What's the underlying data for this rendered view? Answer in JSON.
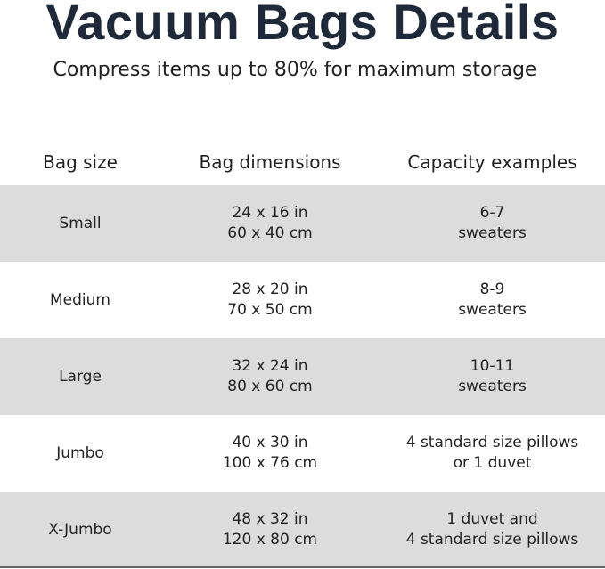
{
  "title": "Vacuum Bags Details",
  "subtitle": "Compress items up to 80% for maximum storage",
  "table": {
    "headers": [
      "Bag size",
      "Bag dimensions",
      "Capacity examples"
    ],
    "rows": [
      {
        "size": "Small",
        "dim_in": "24 x 16 in",
        "dim_cm": "60 x 40 cm",
        "cap1": "6-7",
        "cap2": "sweaters"
      },
      {
        "size": "Medium",
        "dim_in": "28 x 20 in",
        "dim_cm": "70 x 50 cm",
        "cap1": "8-9",
        "cap2": "sweaters"
      },
      {
        "size": "Large",
        "dim_in": "32 x 24 in",
        "dim_cm": "80 x 60 cm",
        "cap1": "10-11",
        "cap2": "sweaters"
      },
      {
        "size": "Jumbo",
        "dim_in": "40 x 30 in",
        "dim_cm": "100 x 76 cm",
        "cap1": "4 standard size pillows",
        "cap2": "or 1 duvet"
      },
      {
        "size": "X-Jumbo",
        "dim_in": "48 x 32 in",
        "dim_cm": "120 x 80 cm",
        "cap1": "1 duvet and",
        "cap2": "4 standard size pillows"
      }
    ]
  }
}
